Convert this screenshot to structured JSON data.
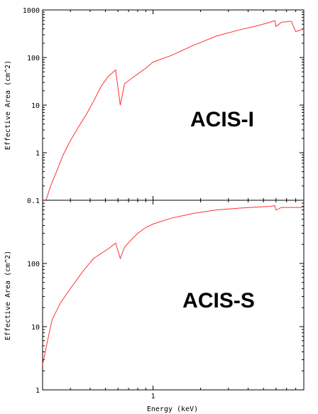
{
  "figure": {
    "xlabel": "Energy (keV)"
  },
  "chart_data": [
    {
      "type": "line",
      "panel_label": "ACIS-I",
      "xscale": "log",
      "yscale": "log",
      "xlim": [
        0.2,
        9.0
      ],
      "ylim": [
        0.1,
        1000
      ],
      "xlabel": "",
      "ylabel": "Effective Area (cm^2)",
      "y_ticks": [
        0.1,
        1,
        10,
        100,
        1000
      ],
      "y_tick_labels": [
        "0.1",
        "1",
        "10",
        "100",
        "1000"
      ],
      "x_ticks": [],
      "x_tick_labels": [],
      "line_color": "#ff3030",
      "x": [
        0.21,
        0.225,
        0.245,
        0.27,
        0.3,
        0.34,
        0.38,
        0.42,
        0.47,
        0.52,
        0.58,
        0.62,
        0.66,
        0.72,
        0.8,
        0.9,
        1.0,
        1.3,
        1.8,
        2.5,
        3.5,
        4.5,
        5.5,
        5.9,
        6.0,
        6.5,
        7.5,
        8.0,
        9.0
      ],
      "y": [
        0.1,
        0.2,
        0.4,
        0.9,
        1.8,
        3.6,
        6.5,
        12,
        25,
        40,
        55,
        10,
        28,
        35,
        45,
        60,
        80,
        110,
        180,
        280,
        380,
        460,
        550,
        600,
        450,
        550,
        580,
        350,
        400
      ],
      "grid": false,
      "legend": "none"
    },
    {
      "type": "line",
      "panel_label": "ACIS-S",
      "xscale": "log",
      "yscale": "log",
      "xlim": [
        0.2,
        9.0
      ],
      "ylim": [
        1,
        1000
      ],
      "xlabel": "Energy (keV)",
      "ylabel": "Effective Area (cm^2)",
      "y_ticks": [
        1,
        10,
        100
      ],
      "y_tick_labels": [
        "1",
        "10",
        "100"
      ],
      "x_ticks": [
        1
      ],
      "x_tick_labels": [
        "1"
      ],
      "line_color": "#ff3030",
      "x": [
        0.2,
        0.215,
        0.23,
        0.26,
        0.3,
        0.36,
        0.42,
        0.52,
        0.58,
        0.62,
        0.66,
        0.72,
        0.8,
        0.9,
        1.0,
        1.3,
        1.8,
        2.5,
        3.5,
        4.5,
        5.5,
        5.9,
        6.0,
        6.5,
        7.5,
        8.5,
        9.0
      ],
      "y": [
        2.5,
        6,
        13,
        24,
        40,
        75,
        120,
        170,
        210,
        120,
        180,
        230,
        300,
        370,
        420,
        520,
        620,
        700,
        750,
        780,
        800,
        820,
        700,
        770,
        770,
        770,
        780
      ],
      "grid": false,
      "legend": "none"
    }
  ]
}
